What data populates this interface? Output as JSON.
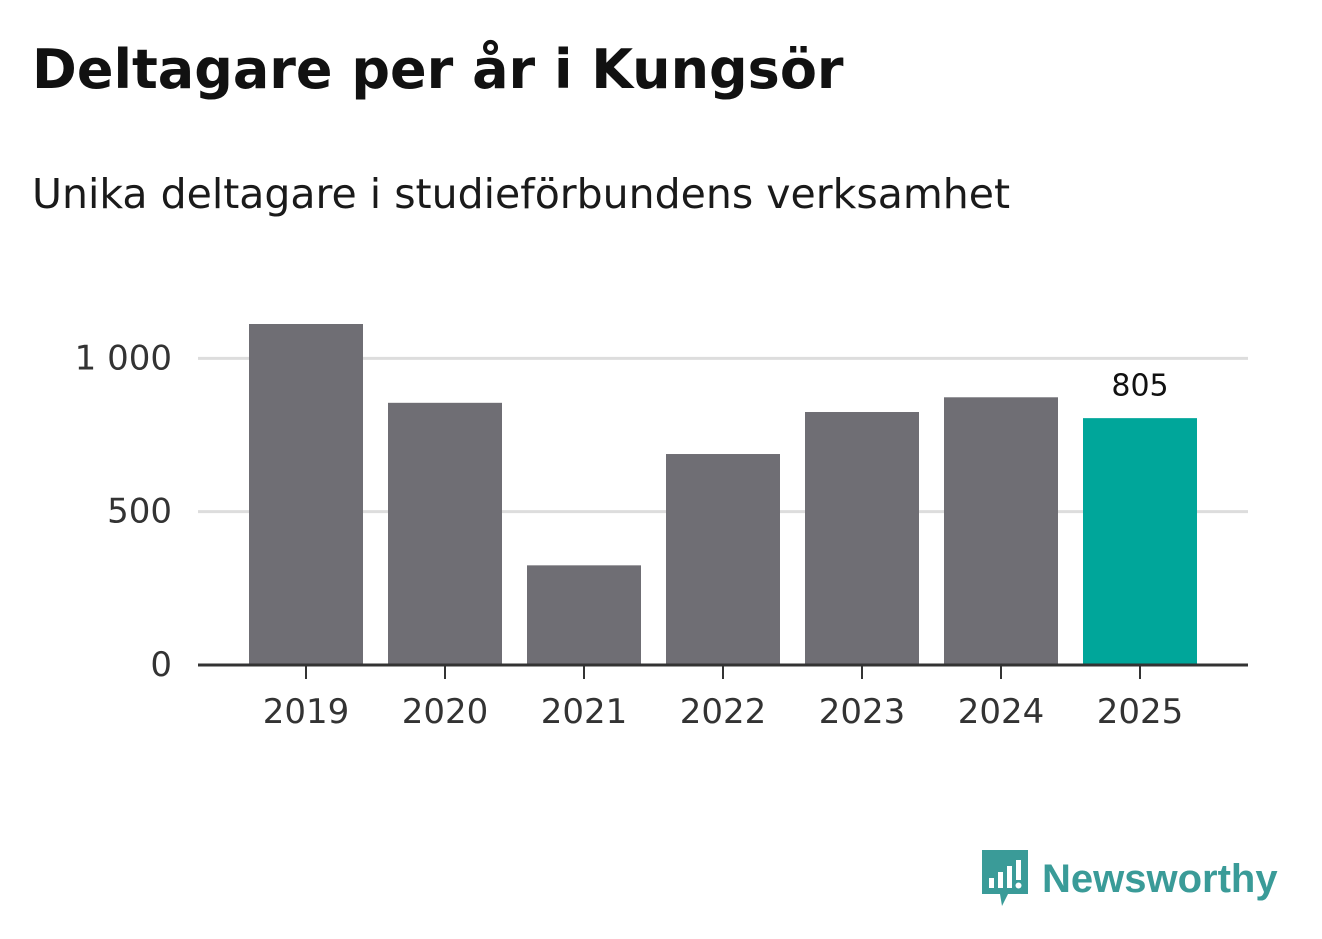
{
  "title": "Deltagare per år i Kungsör",
  "subtitle": "Unika deltagare i studieförbundens verksamhet",
  "brand": {
    "name": "Newsworthy",
    "icon": "newsworthy-logo-icon",
    "color": "#3a9b98"
  },
  "colors": {
    "bar": "#6f6e74",
    "highlight": "#00a69a",
    "grid": "#dddddd",
    "axis": "#333333"
  },
  "chart_data": {
    "type": "bar",
    "categories": [
      "2019",
      "2020",
      "2021",
      "2022",
      "2023",
      "2024",
      "2025"
    ],
    "values": [
      1112,
      855,
      325,
      688,
      825,
      873,
      805
    ],
    "highlight_index": 6,
    "data_labels": [
      {
        "index": 6,
        "text": "805"
      }
    ],
    "yticks": [
      0,
      500,
      1000
    ],
    "ytick_labels": [
      "0",
      "500",
      "1 000"
    ],
    "ylim": [
      0,
      1112
    ],
    "grid": true,
    "xlabel": "",
    "ylabel": ""
  }
}
